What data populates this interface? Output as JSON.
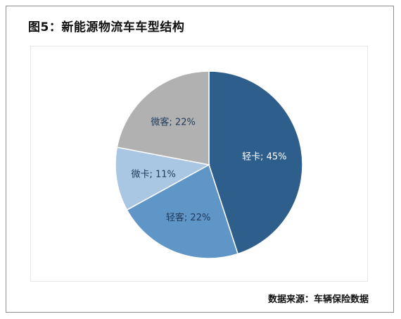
{
  "title": "图5：新能源物流车车型结构",
  "source": "数据来源：车辆保险数据",
  "chart_data": {
    "type": "pie",
    "slices": [
      {
        "name": "轻卡",
        "value": 45,
        "label": "轻卡; 45%",
        "color": "#2e5e8c",
        "label_color": "#ffffff"
      },
      {
        "name": "轻客",
        "value": 22,
        "label": "轻客; 22%",
        "color": "#5f95c7",
        "label_color": "#1f3a5a"
      },
      {
        "name": "微卡",
        "value": 11,
        "label": "微卡; 11%",
        "color": "#a9c6e2",
        "label_color": "#1f3a5a"
      },
      {
        "name": "微客",
        "value": 22,
        "label": "微客; 22%",
        "color": "#b1b1b1",
        "label_color": "#1f3a5a"
      }
    ],
    "start": "12 o'clock",
    "direction": "clockwise"
  }
}
